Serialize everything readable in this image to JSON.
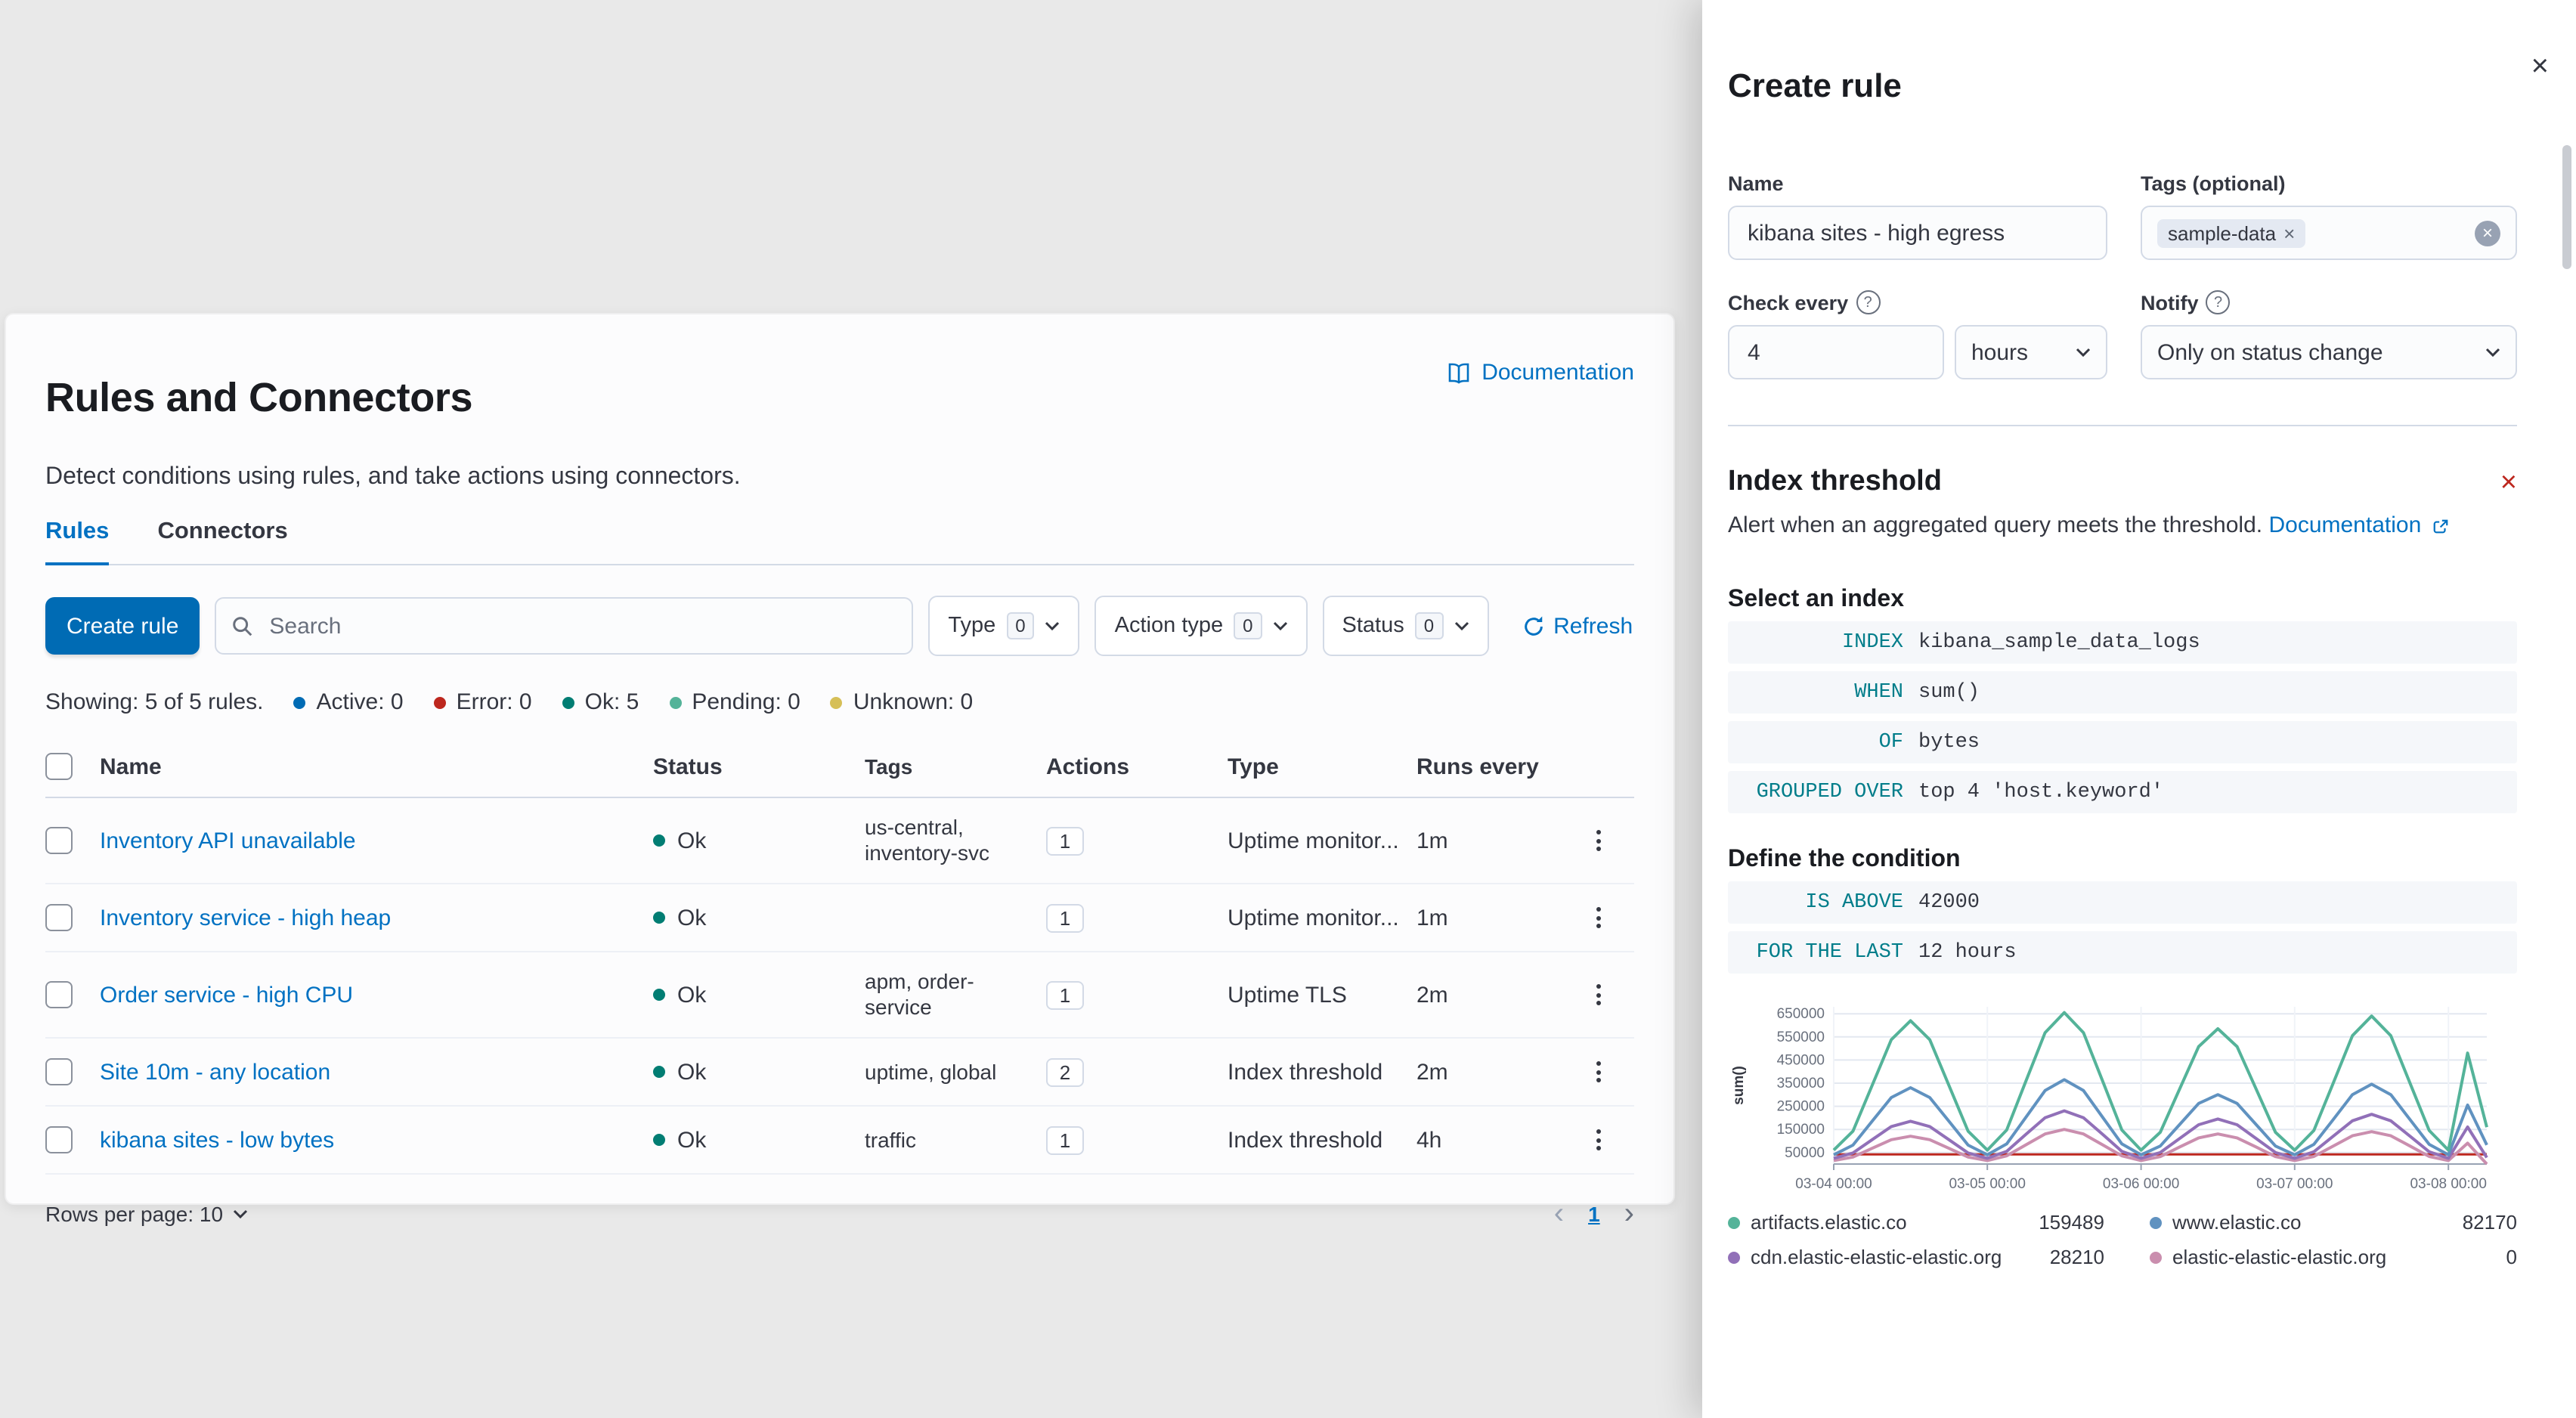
{
  "colors": {
    "primary": "#006BB4",
    "link": "#0071C2",
    "ok": "#017D73",
    "danger": "#BD271E",
    "expression_keyword": "#017D8A"
  },
  "page": {
    "title": "Rules and Connectors",
    "subtitle": "Detect conditions using rules, and take actions using connectors.",
    "documentation_label": "Documentation",
    "tabs": [
      {
        "label": "Rules"
      },
      {
        "label": "Connectors"
      }
    ],
    "create_rule_button": "Create rule",
    "search_placeholder": "Search",
    "filters": [
      {
        "label": "Type",
        "count": "0"
      },
      {
        "label": "Action type",
        "count": "0"
      },
      {
        "label": "Status",
        "count": "0"
      }
    ],
    "refresh_label": "Refresh",
    "summary": {
      "showing": "Showing: 5 of 5 rules.",
      "statuses": [
        {
          "label": "Active: 0",
          "color": "#006BB4"
        },
        {
          "label": "Error: 0",
          "color": "#BD271E"
        },
        {
          "label": "Ok: 5",
          "color": "#017D73"
        },
        {
          "label": "Pending: 0",
          "color": "#54B399"
        },
        {
          "label": "Unknown: 0",
          "color": "#D6BF57"
        }
      ]
    },
    "table": {
      "columns": [
        "Name",
        "Status",
        "Tags",
        "Actions",
        "Type",
        "Runs every"
      ],
      "rows": [
        {
          "name": "Inventory API unavailable",
          "status": "Ok",
          "tags": "us-central, inventory-svc",
          "actions": "1",
          "type": "Uptime monitor...",
          "runs_every": "1m"
        },
        {
          "name": "Inventory service - high heap",
          "status": "Ok",
          "tags": "",
          "actions": "1",
          "type": "Uptime monitor...",
          "runs_every": "1m"
        },
        {
          "name": "Order service - high CPU",
          "status": "Ok",
          "tags": "apm, order-service",
          "actions": "1",
          "type": "Uptime TLS",
          "runs_every": "2m"
        },
        {
          "name": "Site 10m - any location",
          "status": "Ok",
          "tags": "uptime, global",
          "actions": "2",
          "type": "Index threshold",
          "runs_every": "2m"
        },
        {
          "name": "kibana sites - low bytes",
          "status": "Ok",
          "tags": "traffic",
          "actions": "1",
          "type": "Index threshold",
          "runs_every": "4h"
        }
      ],
      "rows_per_page": "Rows per page: 10",
      "prev": "‹",
      "page_number": "1",
      "next": "›"
    }
  },
  "flyout": {
    "title": "Create rule",
    "name_label": "Name",
    "name_value": "kibana sites - high egress",
    "tags_label": "Tags (optional)",
    "tag_chip": "sample-data",
    "check_every_label": "Check every",
    "check_every_value": "4",
    "check_every_unit": "hours",
    "notify_label": "Notify",
    "notify_value": "Only on status change",
    "rule_type": {
      "title": "Index threshold",
      "description": "Alert when an aggregated query meets the threshold.",
      "doc_link": "Documentation"
    },
    "select_index_label": "Select an index",
    "expressions": [
      {
        "keyword": "INDEX",
        "value": "kibana_sample_data_logs"
      },
      {
        "keyword": "WHEN",
        "value": "sum()"
      },
      {
        "keyword": "OF",
        "value": "bytes"
      },
      {
        "keyword": "GROUPED OVER",
        "value": "top 4 'host.keyword'"
      }
    ],
    "condition_label": "Define the condition",
    "condition_expressions": [
      {
        "keyword": "IS ABOVE",
        "value": "42000"
      },
      {
        "keyword": "FOR THE LAST",
        "value": "12 hours"
      }
    ]
  },
  "chart_data": {
    "type": "line",
    "ylabel": "sum()",
    "y_ticks": [
      650000,
      550000,
      450000,
      350000,
      250000,
      150000,
      50000
    ],
    "y_max": 680000,
    "threshold": 42000,
    "threshold_color": "#BD271E",
    "x_hours": [
      0,
      3,
      6,
      9,
      12,
      15,
      18,
      21,
      24,
      27,
      30,
      33,
      36,
      39,
      42,
      45,
      48,
      51,
      54,
      57,
      60,
      63,
      66,
      69,
      72,
      75,
      78,
      81,
      84,
      87,
      90,
      93,
      96,
      99,
      102
    ],
    "x_ticks": [
      {
        "hour": 0,
        "label": "03-04 00:00"
      },
      {
        "hour": 24,
        "label": "03-05 00:00"
      },
      {
        "hour": 48,
        "label": "03-06 00:00"
      },
      {
        "hour": 72,
        "label": "03-07 00:00"
      },
      {
        "hour": 96,
        "label": "03-08 00:00"
      }
    ],
    "series": [
      {
        "name": "artifacts.elastic.co",
        "color": "#54B399",
        "current": "159489",
        "values": [
          60000,
          142000,
          340000,
          538000,
          620000,
          538000,
          340000,
          142000,
          60000,
          147000,
          358000,
          568000,
          655000,
          568000,
          358000,
          147000,
          60000,
          137000,
          323000,
          508000,
          585000,
          508000,
          323000,
          137000,
          60000,
          145000,
          350000,
          555000,
          640000,
          555000,
          350000,
          145000,
          60000,
          480000,
          159489
        ]
      },
      {
        "name": "www.elastic.co",
        "color": "#6092C0",
        "current": "82170",
        "values": [
          40000,
          82000,
          185000,
          288000,
          330000,
          288000,
          185000,
          82000,
          40000,
          87000,
          202000,
          318000,
          365000,
          318000,
          202000,
          87000,
          40000,
          78000,
          170000,
          262000,
          300000,
          262000,
          170000,
          78000,
          40000,
          85000,
          192000,
          300000,
          345000,
          300000,
          192000,
          85000,
          40000,
          255000,
          82170
        ]
      },
      {
        "name": "cdn.elastic-elastic-elastic.org",
        "color": "#9170B8",
        "current": "28210",
        "values": [
          25000,
          48000,
          105000,
          162000,
          185000,
          162000,
          105000,
          48000,
          25000,
          55000,
          128000,
          200000,
          230000,
          200000,
          128000,
          55000,
          25000,
          50000,
          110000,
          170000,
          195000,
          170000,
          110000,
          50000,
          25000,
          53000,
          120000,
          187000,
          215000,
          187000,
          120000,
          53000,
          25000,
          160000,
          28210
        ]
      },
      {
        "name": "elastic-elastic-elastic.org",
        "color": "#CA8EAE",
        "current": "0",
        "values": [
          15000,
          30000,
          68000,
          105000,
          120000,
          105000,
          68000,
          30000,
          15000,
          35000,
          83000,
          130000,
          150000,
          130000,
          83000,
          35000,
          15000,
          32000,
          73000,
          113000,
          130000,
          113000,
          73000,
          32000,
          15000,
          33000,
          78000,
          122000,
          140000,
          122000,
          78000,
          33000,
          15000,
          90000,
          0
        ]
      }
    ]
  }
}
